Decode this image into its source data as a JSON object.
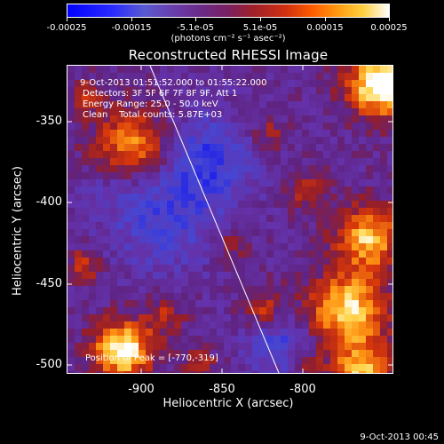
{
  "colorbar": {
    "labels": [
      "-0.00025",
      "-0.00015",
      "-5.1e-05",
      "5.1e-05",
      "0.00015",
      "0.00025"
    ],
    "unit": "(photons cm⁻² s⁻¹ asec⁻²)"
  },
  "title": "Reconstructed RHESSI Image",
  "info": {
    "time": "9-Oct-2013 01:51:52.000 to 01:55:22.000",
    "detectors": "Detectors: 3F 5F 6F 7F 8F 9F, Att 1",
    "energy": "Energy Range: 25.0 - 50.0 keV",
    "clean": "Clean    Total counts: 5.87E+03",
    "peak": "Position of Peak = [-770,-319]"
  },
  "axes": {
    "xlabel": "Heliocentric X (arcsec)",
    "ylabel": "Heliocentric Y (arcsec)",
    "xticks": [
      "-900",
      "-850",
      "-800"
    ],
    "yticks": [
      "-350",
      "-400",
      "-450",
      "-500"
    ]
  },
  "datestamp": "9-Oct-2013 00:45",
  "colors": {
    "background": "#000000",
    "limb": "#ffffff"
  }
}
